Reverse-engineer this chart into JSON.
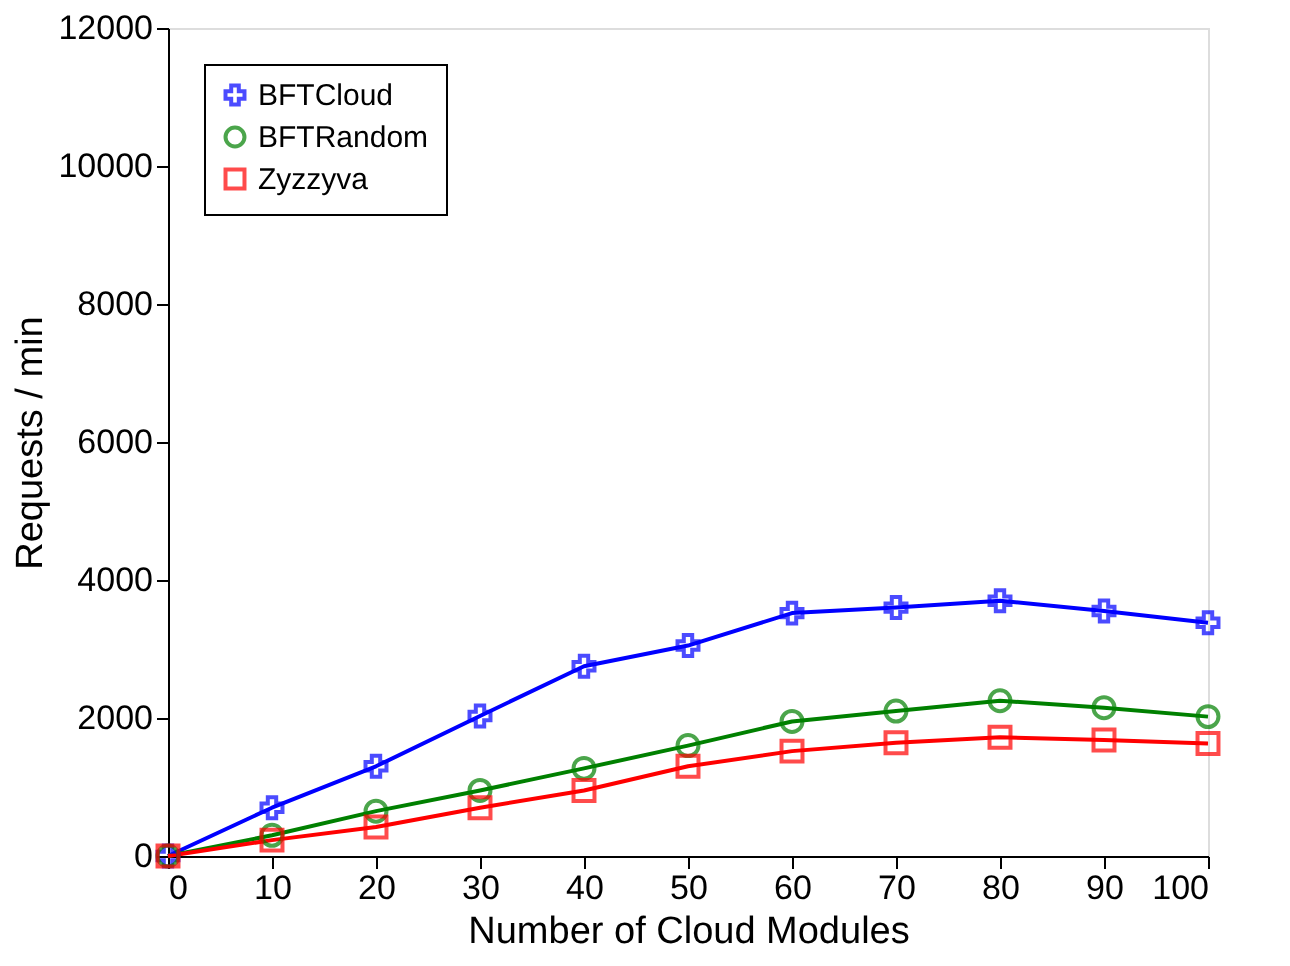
{
  "chart_data": {
    "type": "line",
    "xlabel": "Number of Cloud Modules",
    "ylabel": "Requests / min",
    "x": [
      0,
      10,
      20,
      30,
      40,
      50,
      60,
      70,
      80,
      90,
      100
    ],
    "xlim": [
      0,
      100
    ],
    "xticks": [
      0,
      10,
      20,
      30,
      40,
      50,
      60,
      70,
      80,
      90,
      100
    ],
    "ylim": [
      0,
      12000
    ],
    "yticks": [
      0,
      2000,
      4000,
      6000,
      8000,
      10000,
      12000
    ],
    "grid": false,
    "legend": "top left",
    "series": [
      {
        "name": "BFTCloud",
        "color": "#0000ff",
        "marker": "cross",
        "values": [
          0,
          700,
          1300,
          2030,
          2750,
          3050,
          3520,
          3600,
          3700,
          3550,
          3380
        ]
      },
      {
        "name": "BFTRandom",
        "color": "#008000",
        "marker": "circle",
        "values": [
          0,
          300,
          650,
          950,
          1270,
          1600,
          1950,
          2100,
          2250,
          2150,
          2020
        ]
      },
      {
        "name": "Zyzzyva",
        "color": "#ff0000",
        "marker": "square",
        "values": [
          0,
          230,
          420,
          700,
          950,
          1300,
          1520,
          1640,
          1720,
          1680,
          1630
        ]
      }
    ]
  }
}
